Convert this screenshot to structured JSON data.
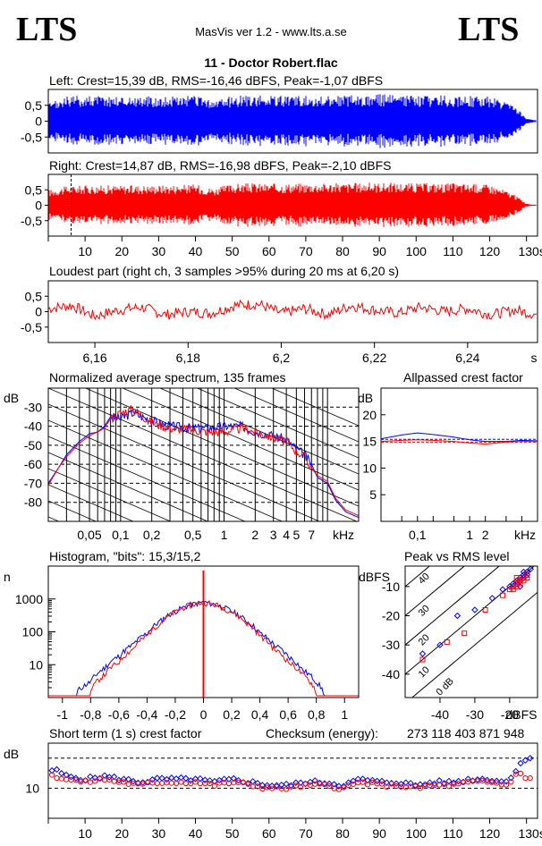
{
  "header": {
    "logo_left": "LTS",
    "logo_right": "LTS",
    "app_title": "MasVis ver 1.2 - www.lts.a.se",
    "file_name": "11 - Doctor Robert.flac"
  },
  "colors": {
    "left": "#0000ff",
    "right": "#ff0000",
    "grid": "#000000"
  },
  "chart_data": [
    {
      "id": "left-waveform",
      "type": "area",
      "title": "Left: Crest=15,39 dB, RMS=-16,46 dBFS, Peak=-1,07 dBFS",
      "ylim": [
        -1,
        1
      ],
      "xlim": [
        0,
        133
      ],
      "yticks": [
        "0,5",
        "0",
        "-0,5"
      ],
      "series": [
        {
          "channel": "left",
          "envelope_x": [
            0,
            5,
            10,
            20,
            30,
            40,
            45,
            50,
            55,
            60,
            70,
            80,
            90,
            100,
            110,
            115,
            120,
            125,
            128,
            130,
            133
          ],
          "envelope_y": [
            0.55,
            0.78,
            0.82,
            0.8,
            0.78,
            0.8,
            0.65,
            0.8,
            0.82,
            0.8,
            0.8,
            0.82,
            0.85,
            0.8,
            0.82,
            0.8,
            0.78,
            0.6,
            0.35,
            0.08,
            0.02
          ]
        }
      ]
    },
    {
      "id": "right-waveform",
      "type": "area",
      "title": "Right: Crest=14,87 dB, RMS=-16,98 dBFS, Peak=-2,10 dBFS",
      "ylim": [
        -1,
        1
      ],
      "xlim": [
        0,
        133
      ],
      "yticks": [
        "0,5",
        "0",
        "-0,5"
      ],
      "xticks": [
        "10",
        "20",
        "30",
        "40",
        "50",
        "60",
        "70",
        "80",
        "90",
        "100",
        "110",
        "120",
        "130s"
      ],
      "marker_x": 6.2,
      "series": [
        {
          "channel": "right",
          "envelope_x": [
            0,
            5,
            10,
            20,
            30,
            40,
            45,
            50,
            55,
            60,
            70,
            80,
            90,
            100,
            110,
            115,
            120,
            125,
            128,
            130,
            133
          ],
          "envelope_y": [
            0.5,
            0.62,
            0.65,
            0.65,
            0.66,
            0.68,
            0.55,
            0.7,
            0.72,
            0.7,
            0.72,
            0.72,
            0.74,
            0.72,
            0.72,
            0.7,
            0.68,
            0.45,
            0.25,
            0.05,
            0.01
          ]
        }
      ]
    },
    {
      "id": "loudest-part",
      "type": "line",
      "title": "Loudest part (right ch, 3 samples >95% during 20 ms at 6,20 s)",
      "ylim": [
        -1,
        1
      ],
      "xlim": [
        6.15,
        6.255
      ],
      "yticks": [
        "0,5",
        "0",
        "-0,5"
      ],
      "xticks": [
        "6,16",
        "6,18",
        "6,2",
        "6,22",
        "6,24",
        "s"
      ],
      "series": [
        {
          "channel": "right",
          "x": [
            6.15,
            6.155,
            6.16,
            6.165,
            6.17,
            6.175,
            6.18,
            6.185,
            6.19,
            6.195,
            6.2,
            6.205,
            6.21,
            6.215,
            6.22,
            6.225,
            6.23,
            6.235,
            6.24,
            6.245,
            6.25,
            6.255
          ],
          "y": [
            0.1,
            0.2,
            -0.15,
            0.05,
            0.15,
            -0.1,
            0.0,
            -0.05,
            0.2,
            0.25,
            -0.05,
            0.1,
            -0.1,
            0.2,
            0.05,
            -0.05,
            0.15,
            0.0,
            0.1,
            -0.1,
            0.05,
            -0.1
          ]
        }
      ]
    },
    {
      "id": "avg-spectrum",
      "type": "line",
      "title": "Normalized average spectrum, 135 frames",
      "ylabel": "dB",
      "xlabel": "kHz",
      "ylim": [
        -90,
        -20
      ],
      "yticks": [
        "-30",
        "-40",
        "-50",
        "-60",
        "-70",
        "-80"
      ],
      "xticks": [
        "0,05",
        "0,1",
        "0,2",
        "0,5",
        "1",
        "2",
        "3",
        "4",
        "5",
        "7",
        "kHz"
      ],
      "series": [
        {
          "channel": "left",
          "x": [
            0.02,
            0.025,
            0.03,
            0.04,
            0.05,
            0.06,
            0.07,
            0.08,
            0.1,
            0.13,
            0.2,
            0.3,
            0.5,
            0.7,
            1,
            1.5,
            2,
            3,
            4,
            5,
            6,
            7,
            8,
            10,
            12,
            15,
            20
          ],
          "y": [
            -70,
            -62,
            -55,
            -48,
            -44,
            -43,
            -40,
            -35,
            -36,
            -33,
            -37,
            -40,
            -41,
            -41,
            -40,
            -40,
            -43,
            -45,
            -47,
            -52,
            -55,
            -60,
            -67,
            -70,
            -79,
            -85,
            -88
          ]
        },
        {
          "channel": "right",
          "x": [
            0.02,
            0.025,
            0.03,
            0.04,
            0.05,
            0.06,
            0.07,
            0.08,
            0.1,
            0.13,
            0.2,
            0.3,
            0.5,
            0.7,
            1,
            1.5,
            2,
            3,
            4,
            5,
            6,
            7,
            8,
            10,
            12,
            15,
            20
          ],
          "y": [
            -71,
            -62,
            -56,
            -49,
            -45,
            -43,
            -41,
            -36,
            -33,
            -31,
            -38,
            -41,
            -42,
            -43,
            -43,
            -41,
            -43,
            -46,
            -48,
            -53,
            -56,
            -62,
            -66,
            -69,
            -78,
            -84,
            -87
          ]
        }
      ]
    },
    {
      "id": "allpass-crest",
      "type": "line",
      "title": "Allpassed crest factor",
      "ylabel": "dB",
      "xlabel": "kHz",
      "ylim": [
        0,
        25
      ],
      "yticks": [
        "20",
        "15",
        "10",
        "5"
      ],
      "xticks": [
        "0,1",
        "1",
        "2",
        "kHz"
      ],
      "series": [
        {
          "channel": "left",
          "x": [
            0.02,
            0.05,
            0.1,
            0.2,
            0.5,
            1,
            2,
            5,
            10,
            20
          ],
          "y": [
            15.5,
            16.2,
            16.6,
            16.3,
            15.8,
            15.3,
            15.0,
            15.0,
            15.2,
            15.1
          ]
        },
        {
          "channel": "right",
          "x": [
            0.02,
            0.05,
            0.1,
            0.2,
            0.5,
            1,
            2,
            5,
            10,
            20
          ],
          "y": [
            15.0,
            15.2,
            15.3,
            15.2,
            15.0,
            14.7,
            14.5,
            14.9,
            15.0,
            15.0
          ]
        }
      ],
      "reference": {
        "left": 15.39,
        "right": 14.87
      }
    },
    {
      "id": "histogram",
      "type": "line",
      "title": "Histogram, \"bits\": 15,3/15,2",
      "ylabel": "n",
      "ylim": [
        1,
        10000
      ],
      "xlim": [
        -1.1,
        1.1
      ],
      "yticks": [
        "1000",
        "100",
        "10"
      ],
      "xticks": [
        "-1",
        "-0,8",
        "-0,6",
        "-0,4",
        "-0,2",
        "0",
        "0,2",
        "0,4",
        "0,6",
        "0,8",
        "1"
      ],
      "series": [
        {
          "channel": "left",
          "x": [
            -0.9,
            -0.8,
            -0.7,
            -0.6,
            -0.5,
            -0.4,
            -0.3,
            -0.2,
            -0.1,
            0,
            0.1,
            0.2,
            0.3,
            0.4,
            0.5,
            0.6,
            0.7,
            0.8,
            0.85
          ],
          "y": [
            1.5,
            3,
            8,
            18,
            40,
            90,
            220,
            420,
            650,
            800,
            650,
            420,
            220,
            90,
            40,
            18,
            7,
            3,
            1.5
          ]
        },
        {
          "channel": "right",
          "x": [
            -0.8,
            -0.7,
            -0.6,
            -0.5,
            -0.4,
            -0.3,
            -0.2,
            -0.1,
            0,
            0.1,
            0.2,
            0.3,
            0.4,
            0.5,
            0.6,
            0.7,
            0.8
          ],
          "y": [
            1.5,
            5,
            12,
            30,
            75,
            190,
            400,
            640,
            780,
            640,
            400,
            190,
            75,
            30,
            12,
            5,
            1.5
          ]
        }
      ]
    },
    {
      "id": "peak-vs-rms",
      "type": "scatter",
      "title": "Peak vs RMS level",
      "ylabel": "dBFS",
      "xlabel": "dBFS",
      "xlim": [
        -50,
        -12
      ],
      "ylim": [
        -48,
        -3
      ],
      "yticks": [
        "-10",
        "-20",
        "-30",
        "-40"
      ],
      "xticks": [
        "-40",
        "-30",
        "-20",
        "dBFS"
      ],
      "diagonal_labels": [
        "40",
        "30",
        "20",
        "10",
        "0 dB"
      ],
      "series": [
        {
          "channel": "left",
          "x": [
            -45,
            -40,
            -35,
            -30,
            -25,
            -22,
            -20,
            -19,
            -18,
            -17,
            -16,
            -15,
            -16,
            -17,
            -18,
            -15,
            -14,
            -16,
            -17
          ],
          "y": [
            -33,
            -30,
            -20,
            -18,
            -14,
            -11,
            -10,
            -9,
            -8,
            -7,
            -6,
            -5,
            -7,
            -8,
            -9,
            -6,
            -4,
            -5,
            -10
          ]
        },
        {
          "channel": "right",
          "x": [
            -45,
            -38,
            -33,
            -27,
            -22,
            -20,
            -19,
            -18,
            -17,
            -16,
            -15,
            -17,
            -18,
            -19,
            -16,
            -15,
            -18
          ],
          "y": [
            -35,
            -29,
            -26,
            -18,
            -13,
            -11,
            -10,
            -9,
            -8,
            -7,
            -6,
            -9,
            -10,
            -11,
            -8,
            -7,
            -7
          ]
        }
      ]
    },
    {
      "id": "short-term-crest",
      "type": "scatter",
      "title": "Short term (1 s) crest factor",
      "checksum_label": "Checksum (energy):",
      "checksum_value": "273 118 403 871 948",
      "ylabel": "dB",
      "ylim": [
        0,
        25
      ],
      "xlim": [
        0,
        133
      ],
      "yticks": [
        "10"
      ],
      "reference_lines": [
        10,
        20
      ],
      "xticks": [
        "10",
        "20",
        "30",
        "40",
        "50",
        "60",
        "70",
        "80",
        "90",
        "100",
        "110",
        "120",
        "130s"
      ],
      "series": [
        {
          "channel": "left",
          "x": [
            2,
            5,
            10,
            15,
            20,
            25,
            30,
            35,
            40,
            45,
            50,
            55,
            60,
            65,
            70,
            75,
            80,
            85,
            90,
            95,
            100,
            105,
            110,
            115,
            120,
            125,
            128,
            130
          ],
          "y": [
            16,
            14,
            13,
            14,
            13,
            12,
            13,
            13,
            13,
            12,
            13,
            12,
            11,
            11,
            12,
            12,
            11,
            13,
            12,
            12,
            11,
            12,
            12,
            13,
            13,
            12,
            18,
            20
          ]
        },
        {
          "channel": "right",
          "x": [
            2,
            5,
            10,
            15,
            20,
            25,
            30,
            35,
            40,
            45,
            50,
            55,
            60,
            65,
            70,
            75,
            80,
            85,
            90,
            95,
            100,
            105,
            110,
            115,
            120,
            125,
            128,
            130
          ],
          "y": [
            14,
            13,
            12,
            13,
            12,
            11,
            12,
            12,
            12,
            11,
            12,
            11,
            10,
            10,
            11,
            11,
            10,
            12,
            11,
            11,
            10,
            11,
            11,
            12,
            12,
            11,
            16,
            13
          ]
        }
      ]
    }
  ]
}
